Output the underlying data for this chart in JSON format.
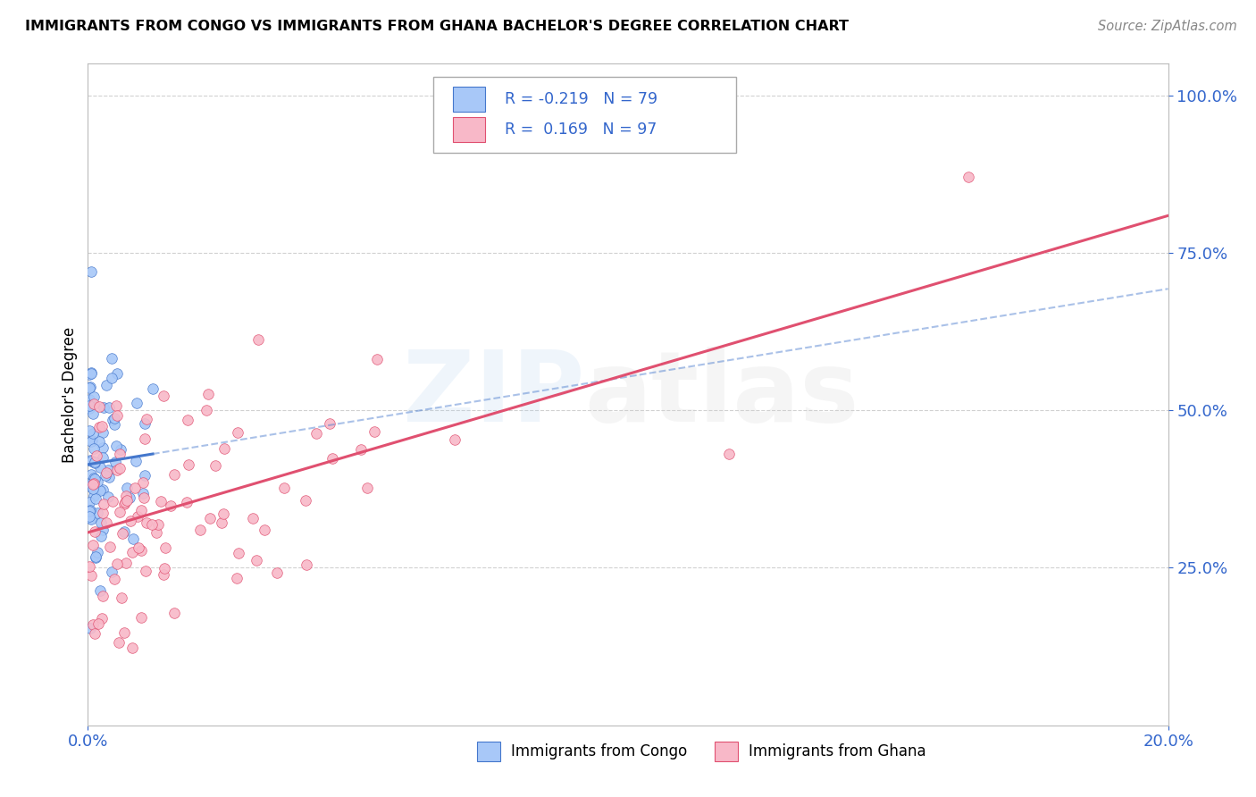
{
  "title": "IMMIGRANTS FROM CONGO VS IMMIGRANTS FROM GHANA BACHELOR'S DEGREE CORRELATION CHART",
  "source": "Source: ZipAtlas.com",
  "ylabel": "Bachelor's Degree",
  "xlim": [
    0.0,
    0.2
  ],
  "ylim": [
    0.0,
    1.05
  ],
  "color_congo": "#a8c8f8",
  "color_ghana": "#f8b8c8",
  "color_congo_line": "#4477cc",
  "color_ghana_line": "#e05070",
  "color_blue_text": "#3366cc",
  "background_color": "#ffffff",
  "grid_color": "#cccccc",
  "legend_r_congo": "-0.219",
  "legend_n_congo": "79",
  "legend_r_ghana": "0.169",
  "legend_n_ghana": "97"
}
